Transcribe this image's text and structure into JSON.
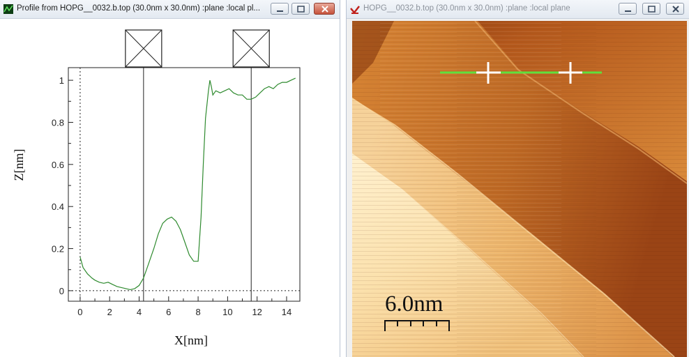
{
  "left_window": {
    "title": "Profile from HOPG__0032.b.top (30.0nm x 30.0nm) :plane :local pl...",
    "buttons": {
      "minimize": "minimize",
      "maximize": "maximize",
      "close": "close"
    }
  },
  "right_window": {
    "title": "HOPG__0032.b.top (30.0nm x 30.0nm) :plane :local plane",
    "buttons": {
      "minimize": "minimize",
      "maximize": "maximize",
      "close": "close"
    },
    "scale_bar_label": "6.0nm"
  },
  "colors": {
    "profile_line": "#2e8a2e",
    "profile_marker_line": "#5fe03c",
    "stm_dark": "#7a2f0a",
    "stm_mid": "#d47a28",
    "stm_light": "#fbe4b0"
  },
  "chart_data": {
    "type": "line",
    "title": "",
    "xlabel": "X[nm]",
    "ylabel": "Z[nm]",
    "xlim": [
      -0.8,
      14.9
    ],
    "ylim": [
      -0.05,
      1.06
    ],
    "x_ticks": [
      0,
      2,
      4,
      6,
      8,
      10,
      12,
      14
    ],
    "y_ticks": [
      0,
      0.2,
      0.4,
      0.6,
      0.8,
      1
    ],
    "cursors_x": [
      4.3,
      11.6
    ],
    "series": [
      {
        "x": [
          0,
          0.2,
          0.5,
          0.8,
          1.0,
          1.3,
          1.6,
          1.9,
          2.2,
          2.5,
          2.8,
          3.1,
          3.4,
          3.7,
          4.0,
          4.3,
          4.6,
          5.0,
          5.3,
          5.6,
          5.9,
          6.2,
          6.5,
          6.8,
          7.1,
          7.4,
          7.7,
          8.0,
          8.2,
          8.35,
          8.5,
          8.7,
          8.8,
          8.9,
          9.0,
          9.2,
          9.5,
          9.8,
          10.1,
          10.4,
          10.7,
          11.0,
          11.3,
          11.6,
          11.9,
          12.2,
          12.5,
          12.8,
          13.1,
          13.4,
          13.7,
          14.0,
          14.3,
          14.6
        ],
        "y": [
          0.16,
          0.11,
          0.08,
          0.06,
          0.05,
          0.04,
          0.035,
          0.04,
          0.03,
          0.02,
          0.015,
          0.01,
          0.005,
          0.01,
          0.025,
          0.06,
          0.12,
          0.2,
          0.27,
          0.32,
          0.34,
          0.35,
          0.33,
          0.29,
          0.23,
          0.17,
          0.14,
          0.14,
          0.35,
          0.6,
          0.82,
          0.95,
          1.0,
          0.97,
          0.93,
          0.95,
          0.94,
          0.95,
          0.96,
          0.94,
          0.93,
          0.93,
          0.91,
          0.91,
          0.92,
          0.94,
          0.96,
          0.97,
          0.96,
          0.98,
          0.99,
          0.99,
          1.0,
          1.01
        ]
      }
    ]
  }
}
